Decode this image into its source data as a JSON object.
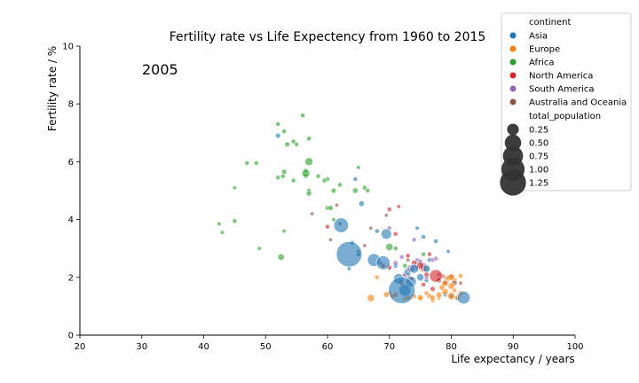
{
  "chart_data": {
    "type": "scatter",
    "title": "Fertility rate vs Life Expectency from 1960 to 2015",
    "annotation": "2005",
    "xlabel": "Life expectancy / years",
    "ylabel": "Fertility rate / %",
    "xlim": [
      20,
      100
    ],
    "ylim": [
      0,
      10
    ],
    "xticks": [
      "20",
      "30",
      "40",
      "50",
      "60",
      "70",
      "80",
      "90",
      "100"
    ],
    "yticks": [
      "0",
      "2",
      "4",
      "6",
      "8",
      "10"
    ],
    "grid": false,
    "legend": {
      "placement": "top-right",
      "hue_title": "continent",
      "size_title": "total_population",
      "size_entries": [
        "0.25",
        "0.50",
        "0.75",
        "1.00",
        "1.25"
      ]
    },
    "series": [
      {
        "name": "Asia",
        "color": "#1f77b4",
        "points": [
          [
            63.5,
            2.8,
            0.12
          ],
          [
            72,
            1.55,
            0.13
          ],
          [
            62.2,
            3.8,
            0.04
          ],
          [
            69,
            2.5,
            0.035
          ],
          [
            67.5,
            2.6,
            0.03
          ],
          [
            69.5,
            3.5,
            0.02
          ],
          [
            71.5,
            1.95,
            0.02
          ],
          [
            72.5,
            1.55,
            0.025
          ],
          [
            73.5,
            1.85,
            0.02
          ],
          [
            82,
            1.3,
            0.03
          ],
          [
            74,
            2.3,
            0.015
          ],
          [
            75,
            2.0,
            0.01
          ],
          [
            73,
            2.2,
            0.01
          ],
          [
            76,
            2.3,
            0.01
          ],
          [
            52,
            6.9,
            0.005
          ],
          [
            64.5,
            5.4,
            0.004
          ],
          [
            65.5,
            4.55,
            0.006
          ],
          [
            68,
            3.6,
            0.004
          ],
          [
            75.5,
            3.4,
            0.004
          ],
          [
            77.5,
            3.25,
            0.004
          ],
          [
            74.5,
            3.7,
            0.003
          ],
          [
            79.5,
            2.9,
            0.003
          ],
          [
            64,
            3.2,
            0.004
          ],
          [
            65,
            2.8,
            0.004
          ],
          [
            68.5,
            2.5,
            0.004
          ],
          [
            71,
            2.4,
            0.004
          ],
          [
            76.5,
            2.6,
            0.004
          ],
          [
            78,
            1.9,
            0.004
          ],
          [
            80,
            1.35,
            0.004
          ],
          [
            81,
            1.25,
            0.004
          ],
          [
            73,
            2.05,
            0.004
          ],
          [
            63.5,
            2.3,
            0.003
          ],
          [
            75,
            2.5,
            0.004
          ],
          [
            76,
            1.9,
            0.004
          ],
          [
            79,
            1.4,
            0.004
          ]
        ]
      },
      {
        "name": "Europe",
        "color": "#ff7f0e",
        "points": [
          [
            67,
            1.28,
            0.01
          ],
          [
            69.5,
            1.4,
            0.006
          ],
          [
            70.5,
            1.35,
            0.005
          ],
          [
            73,
            1.3,
            0.006
          ],
          [
            75,
            1.3,
            0.006
          ],
          [
            76.5,
            1.35,
            0.005
          ],
          [
            78,
            1.4,
            0.006
          ],
          [
            79,
            1.5,
            0.008
          ],
          [
            80,
            1.7,
            0.008
          ],
          [
            80.5,
            1.9,
            0.006
          ],
          [
            79,
            1.8,
            0.007
          ],
          [
            80,
            1.35,
            0.01
          ],
          [
            81,
            1.3,
            0.006
          ],
          [
            80,
            2.0,
            0.008
          ],
          [
            78.5,
            1.65,
            0.006
          ],
          [
            77,
            1.3,
            0.005
          ],
          [
            74,
            1.35,
            0.005
          ],
          [
            72.5,
            1.25,
            0.005
          ],
          [
            71,
            1.4,
            0.005
          ],
          [
            68,
            2.0,
            0.004
          ],
          [
            70,
            1.45,
            0.004
          ],
          [
            79,
            2.0,
            0.004
          ],
          [
            81.5,
            1.45,
            0.005
          ],
          [
            79.5,
            1.95,
            0.005
          ],
          [
            77,
            1.2,
            0.004
          ],
          [
            80.5,
            1.55,
            0.004
          ],
          [
            76,
            1.45,
            0.004
          ],
          [
            78,
            1.3,
            0.004
          ],
          [
            81.5,
            2.05,
            0.004
          ],
          [
            75,
            1.25,
            0.004
          ]
        ]
      },
      {
        "name": "Africa",
        "color": "#2ca02c",
        "points": [
          [
            57,
            6.0,
            0.012
          ],
          [
            56.5,
            5.6,
            0.012
          ],
          [
            52.5,
            2.7,
            0.008
          ],
          [
            70,
            3.05,
            0.01
          ],
          [
            56,
            7.6,
            0.004
          ],
          [
            52,
            7.3,
            0.004
          ],
          [
            53,
            7.05,
            0.004
          ],
          [
            57,
            6.8,
            0.004
          ],
          [
            54.5,
            6.7,
            0.004
          ],
          [
            55,
            6.6,
            0.004
          ],
          [
            53.5,
            6.6,
            0.005
          ],
          [
            47,
            5.95,
            0.004
          ],
          [
            48.5,
            5.95,
            0.004
          ],
          [
            52,
            5.45,
            0.004
          ],
          [
            53,
            5.65,
            0.005
          ],
          [
            54.5,
            5.35,
            0.004
          ],
          [
            56.5,
            5.5,
            0.004
          ],
          [
            58.5,
            5.5,
            0.004
          ],
          [
            60,
            5.4,
            0.004
          ],
          [
            62,
            5.2,
            0.004
          ],
          [
            61,
            5.0,
            0.005
          ],
          [
            64.5,
            5.0,
            0.006
          ],
          [
            66,
            5.1,
            0.004
          ],
          [
            65,
            5.8,
            0.003
          ],
          [
            45,
            5.1,
            0.003
          ],
          [
            57,
            4.9,
            0.005
          ],
          [
            60.5,
            4.4,
            0.005
          ],
          [
            61,
            4.0,
            0.003
          ],
          [
            45,
            3.95,
            0.004
          ],
          [
            42.5,
            3.85,
            0.003
          ],
          [
            43,
            3.55,
            0.003
          ],
          [
            53,
            3.6,
            0.003
          ],
          [
            49,
            3.0,
            0.003
          ],
          [
            57,
            5.0,
            0.004
          ],
          [
            59.5,
            5.35,
            0.004
          ],
          [
            60,
            4.4,
            0.004
          ],
          [
            72.5,
            2.4,
            0.004
          ],
          [
            74.5,
            2.5,
            0.004
          ],
          [
            75.5,
            2.8,
            0.004
          ],
          [
            76,
            2.3,
            0.004
          ],
          [
            71,
            3.0,
            0.004
          ],
          [
            56.5,
            5.7,
            0.004
          ],
          [
            52.8,
            5.5,
            0.004
          ],
          [
            66.5,
            5.0,
            0.004
          ]
        ]
      },
      {
        "name": "North America",
        "color": "#d62728",
        "points": [
          [
            77.5,
            2.05,
            0.03
          ],
          [
            75,
            2.4,
            0.01
          ],
          [
            75.5,
            2.3,
            0.008
          ],
          [
            74,
            2.5,
            0.006
          ],
          [
            70,
            4.35,
            0.004
          ],
          [
            71.5,
            4.45,
            0.003
          ],
          [
            60,
            3.75,
            0.004
          ],
          [
            73,
            2.75,
            0.004
          ],
          [
            76,
            2.1,
            0.005
          ],
          [
            77,
            1.6,
            0.005
          ],
          [
            78,
            1.9,
            0.005
          ],
          [
            72,
            1.8,
            0.005
          ],
          [
            71,
            3.5,
            0.004
          ],
          [
            76.5,
            2.8,
            0.004
          ],
          [
            79,
            1.8,
            0.004
          ],
          [
            73.5,
            1.95,
            0.004
          ],
          [
            74.5,
            2.35,
            0.005
          ],
          [
            78.5,
            2.05,
            0.004
          ],
          [
            75.5,
            1.75,
            0.004
          ],
          [
            80,
            2.05,
            0.004
          ],
          [
            72.5,
            2.05,
            0.004
          ],
          [
            70,
            2.35,
            0.004
          ],
          [
            69,
            2.4,
            0.004
          ]
        ]
      },
      {
        "name": "South America",
        "color": "#9467bd",
        "points": [
          [
            73.5,
            2.3,
            0.012
          ],
          [
            75.5,
            2.4,
            0.008
          ],
          [
            71,
            2.5,
            0.005
          ],
          [
            74,
            3.3,
            0.004
          ],
          [
            70,
            3.7,
            0.004
          ],
          [
            74.5,
            2.6,
            0.004
          ],
          [
            76,
            2.0,
            0.004
          ],
          [
            72,
            2.7,
            0.004
          ],
          [
            77,
            2.6,
            0.004
          ],
          [
            78,
            2.1,
            0.004
          ],
          [
            72.5,
            2.1,
            0.004
          ],
          [
            75,
            2.55,
            0.004
          ],
          [
            77.5,
            2.65,
            0.004
          ]
        ]
      },
      {
        "name": "Australia and Oceania",
        "color": "#8c564b",
        "points": [
          [
            80.5,
            1.8,
            0.006
          ],
          [
            79.5,
            2.0,
            0.004
          ],
          [
            61.5,
            4.5,
            0.003
          ],
          [
            67,
            3.7,
            0.003
          ],
          [
            69.5,
            4.15,
            0.003
          ],
          [
            70,
            2.3,
            0.003
          ],
          [
            73,
            2.6,
            0.003
          ],
          [
            65,
            2.9,
            0.003
          ],
          [
            66,
            3.1,
            0.003
          ],
          [
            81.5,
            1.8,
            0.003
          ],
          [
            62,
            3.85,
            0.003
          ],
          [
            57.5,
            4.2,
            0.003
          ],
          [
            60.5,
            3.3,
            0.003
          ]
        ]
      }
    ]
  }
}
